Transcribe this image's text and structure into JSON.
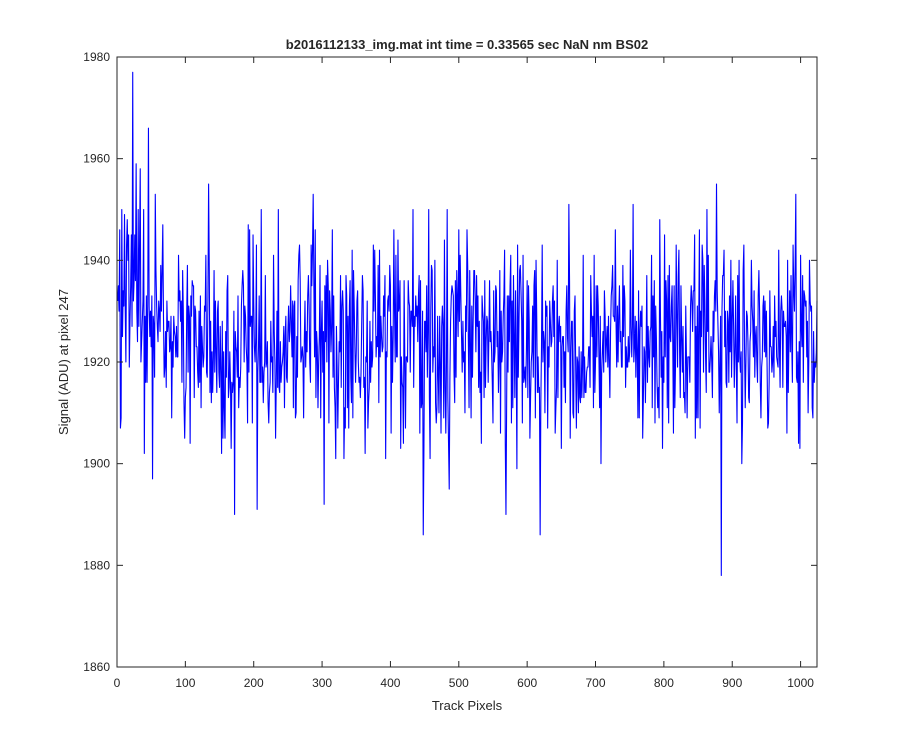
{
  "chart_data": {
    "type": "line",
    "title": "b2016112133_img.mat int time = 0.33565 sec  NaN nm BS02",
    "xlabel": "Track Pixels",
    "ylabel": "Signal (ADU) at pixel 247",
    "xlim": [
      0,
      1024
    ],
    "ylim": [
      1860,
      1980
    ],
    "xticks": [
      0,
      100,
      200,
      300,
      400,
      500,
      600,
      700,
      800,
      900,
      1000
    ],
    "yticks": [
      1860,
      1880,
      1900,
      1920,
      1940,
      1960,
      1980
    ],
    "grid": false,
    "series_color": "#0000ff",
    "series": [
      {
        "x_start": 1,
        "x_step": 1,
        "n_points": 1024,
        "baseline_mean": 1924,
        "baseline_std": 10,
        "notable_points": [
          {
            "x": 5,
            "y": 1907
          },
          {
            "x": 23,
            "y": 1977
          },
          {
            "x": 28,
            "y": 1959
          },
          {
            "x": 34,
            "y": 1958
          },
          {
            "x": 40,
            "y": 1902
          },
          {
            "x": 46,
            "y": 1966
          },
          {
            "x": 52,
            "y": 1897
          },
          {
            "x": 56,
            "y": 1953
          },
          {
            "x": 134,
            "y": 1955
          },
          {
            "x": 172,
            "y": 1890
          },
          {
            "x": 205,
            "y": 1891
          },
          {
            "x": 287,
            "y": 1953
          },
          {
            "x": 303,
            "y": 1892
          },
          {
            "x": 433,
            "y": 1950
          },
          {
            "x": 448,
            "y": 1886
          },
          {
            "x": 456,
            "y": 1950
          },
          {
            "x": 486,
            "y": 1895
          },
          {
            "x": 569,
            "y": 1890
          },
          {
            "x": 619,
            "y": 1886
          },
          {
            "x": 661,
            "y": 1951
          },
          {
            "x": 755,
            "y": 1951
          },
          {
            "x": 863,
            "y": 1950
          },
          {
            "x": 877,
            "y": 1955
          },
          {
            "x": 884,
            "y": 1878
          },
          {
            "x": 993,
            "y": 1953
          },
          {
            "x": 997,
            "y": 1904
          },
          {
            "x": 1018,
            "y": 1909
          }
        ]
      }
    ]
  }
}
